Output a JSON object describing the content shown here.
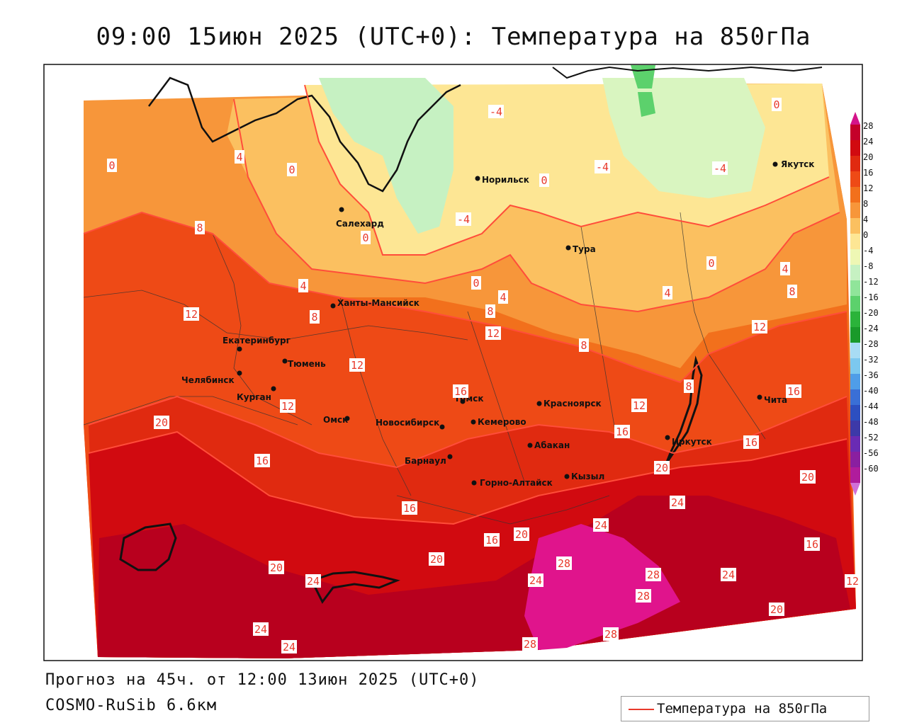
{
  "title": "09:00 15июн 2025 (UTC+0): Температура на 850гПа",
  "footer_forecast": "Прогноз на 45ч. от 12:00 13июн 2025 (UTC+0)",
  "footer_model": "COSMO-RuSib 6.6км",
  "legend_label": "Температура на 850гПа",
  "colorbar": {
    "ticks": [
      "28",
      "24",
      "20",
      "16",
      "12",
      "8",
      "4",
      "0",
      "-4",
      "-8",
      "-12",
      "-16",
      "-20",
      "-24",
      "-28",
      "-32",
      "-36",
      "-40",
      "-44",
      "-48",
      "-52",
      "-56",
      "-60"
    ],
    "colors": [
      "#c4002a",
      "#d10a10",
      "#e02a10",
      "#ee4a16",
      "#f2701c",
      "#f7963a",
      "#fbc060",
      "#fde694",
      "#eef7b4",
      "#c6f1c2",
      "#90e59a",
      "#5cd16c",
      "#2bb33a",
      "#1a9a2a",
      "#a8dcf4",
      "#7cc8ef",
      "#4f9de8",
      "#3a6fd6",
      "#2d4fc0",
      "#3d39a8",
      "#6a2bb4",
      "#8a1fa0",
      "#b01c9c"
    ],
    "top_cap": "#d4148a",
    "bottom_cap": "#d070d8"
  },
  "cities": [
    {
      "name": "Салехард"
    },
    {
      "name": "Норильск"
    },
    {
      "name": "Якутск"
    },
    {
      "name": "Тура"
    },
    {
      "name": "Ханты-Мансийск"
    },
    {
      "name": "Екатеринбург"
    },
    {
      "name": "Тюмень"
    },
    {
      "name": "Челябинск"
    },
    {
      "name": "Курган"
    },
    {
      "name": "Омск"
    },
    {
      "name": "Новосибирск"
    },
    {
      "name": "Томск"
    },
    {
      "name": "Кемерово"
    },
    {
      "name": "Красноярск"
    },
    {
      "name": "Абакан"
    },
    {
      "name": "Барнаул"
    },
    {
      "name": "Горно-Алтайск"
    },
    {
      "name": "Кызыл"
    },
    {
      "name": "Иркутск"
    },
    {
      "name": "Чита"
    }
  ],
  "isotherm_labels": [
    "-4",
    "-4",
    "-4",
    "-4",
    "0",
    "0",
    "0",
    "0",
    "0",
    "0",
    "0",
    "4",
    "4",
    "4",
    "4",
    "4",
    "8",
    "8",
    "8",
    "8",
    "8",
    "8",
    "12",
    "12",
    "12",
    "12",
    "12",
    "12",
    "16",
    "16",
    "16",
    "16",
    "16",
    "16",
    "16",
    "20",
    "20",
    "20",
    "20",
    "20",
    "20",
    "20",
    "24",
    "24",
    "24",
    "24",
    "24",
    "24",
    "24",
    "28",
    "28",
    "28",
    "28",
    "28",
    "16",
    "12"
  ]
}
